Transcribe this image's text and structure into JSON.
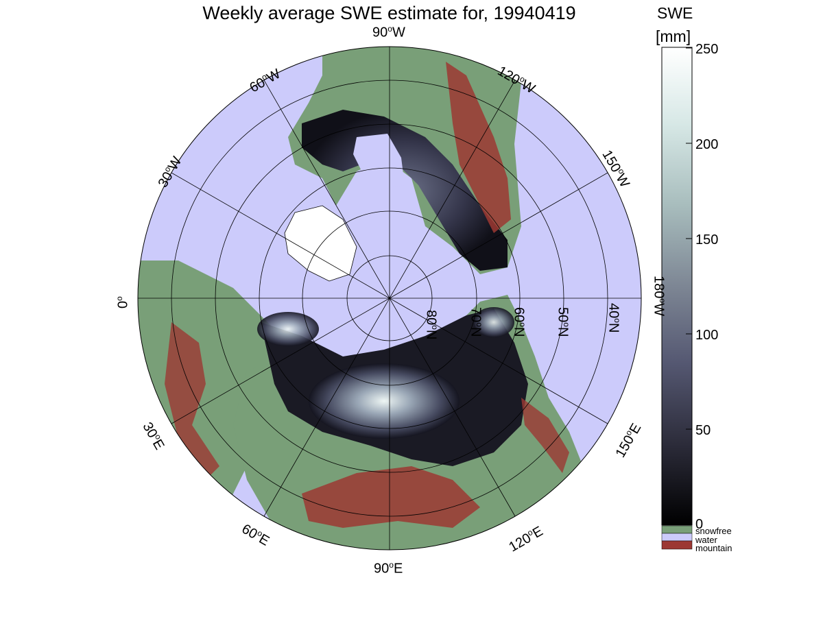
{
  "title": "Weekly average SWE estimate for, 19940419",
  "longitude_labels": {
    "l90w": "90",
    "l120w": "120",
    "l150w": "150",
    "l180w": "180",
    "l0": "0",
    "l30w": "30",
    "l60w": "60",
    "l30e": "30",
    "l60e": "60",
    "l90e": "90",
    "l120e": "120",
    "l150e": "150",
    "deg": "o",
    "w": "W",
    "e": "E"
  },
  "latitude_labels": [
    "80",
    "70",
    "60",
    "50",
    "40"
  ],
  "lat_suffix": "N",
  "colorbar": {
    "label_line1": "SWE",
    "label_line2": "[mm]",
    "ticks": [
      "250",
      "200",
      "150",
      "100",
      "50",
      "0"
    ],
    "range": [
      0,
      250
    ],
    "gradient": [
      "#000000",
      "#2c2c3a",
      "#555872",
      "#7d8694",
      "#a8bdbd",
      "#d7e8e6",
      "#ffffff"
    ],
    "categories": [
      {
        "label": "snowfree",
        "color": "#799f78"
      },
      {
        "label": "water",
        "color": "#cccbfb"
      },
      {
        "label": "mountain",
        "color": "#9c3833"
      }
    ]
  },
  "colors": {
    "ocean": "#cccbfb",
    "snowfree": "#799f78",
    "mountain": "#9c3833",
    "grid": "#000000"
  }
}
